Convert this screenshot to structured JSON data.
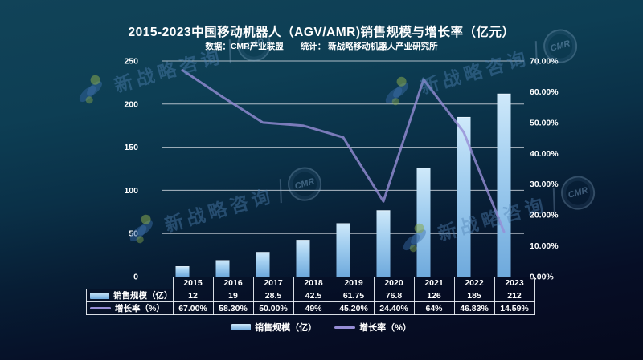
{
  "header": {
    "title": "2015-2023中国移动机器人（AGV/AMR)销售规模与增长率（亿元）",
    "subtitle": "数据：CMR产业联盟　　统计： 新战略移动机器人产业研究所"
  },
  "watermark": {
    "brand_text": "新战略咨询",
    "badge_text": "CMR"
  },
  "legend": {
    "bar_label": "销售规模（亿）",
    "line_label": "增长率（%）"
  },
  "table": {
    "row_headers": [
      "销售规模（亿）",
      "增长率（%）"
    ]
  },
  "chart_data": {
    "type": "combo",
    "categories": [
      "2015",
      "2016",
      "2017",
      "2018",
      "2019",
      "2020",
      "2021",
      "2022",
      "2023"
    ],
    "series": [
      {
        "name": "销售规模（亿）",
        "type": "bar",
        "axis": "left",
        "values": [
          12,
          19,
          28.5,
          42.5,
          61.75,
          76.8,
          126,
          185,
          212
        ],
        "display": [
          "12",
          "19",
          "28.5",
          "42.5",
          "61.75",
          "76.8",
          "126",
          "185",
          "212"
        ]
      },
      {
        "name": "增长率（%）",
        "type": "line",
        "axis": "right",
        "values": [
          67.0,
          58.3,
          50.0,
          49,
          45.2,
          24.4,
          64,
          46.83,
          14.59
        ],
        "display": [
          "67.00%",
          "58.30%",
          "50.00%",
          "49%",
          "45.20%",
          "24.40%",
          "64%",
          "46.83%",
          "14.59%"
        ]
      }
    ],
    "left_axis": {
      "min": 0,
      "max": 250,
      "step": 50,
      "tick_labels": [
        "0",
        "50",
        "100",
        "150",
        "200",
        "250"
      ]
    },
    "right_axis": {
      "min": 0,
      "max": 70,
      "step": 10,
      "tick_labels": [
        "0.00%",
        "10.00%",
        "20.00%",
        "30.00%",
        "40.00%",
        "50.00%",
        "60.00%",
        "70.00%"
      ]
    },
    "grid": true,
    "legend_position": "bottom"
  },
  "colors": {
    "background_top": "#0d3e54",
    "background_bottom": "#070b20",
    "grid": "#cdd3dc",
    "text": "#ffffff",
    "bar_top": "#cfe9fa",
    "bar_bottom": "#6ea9dc",
    "line": "#968dd6",
    "watermark_blue": "#4a7fb0",
    "watermark_green": "#87a84c"
  }
}
